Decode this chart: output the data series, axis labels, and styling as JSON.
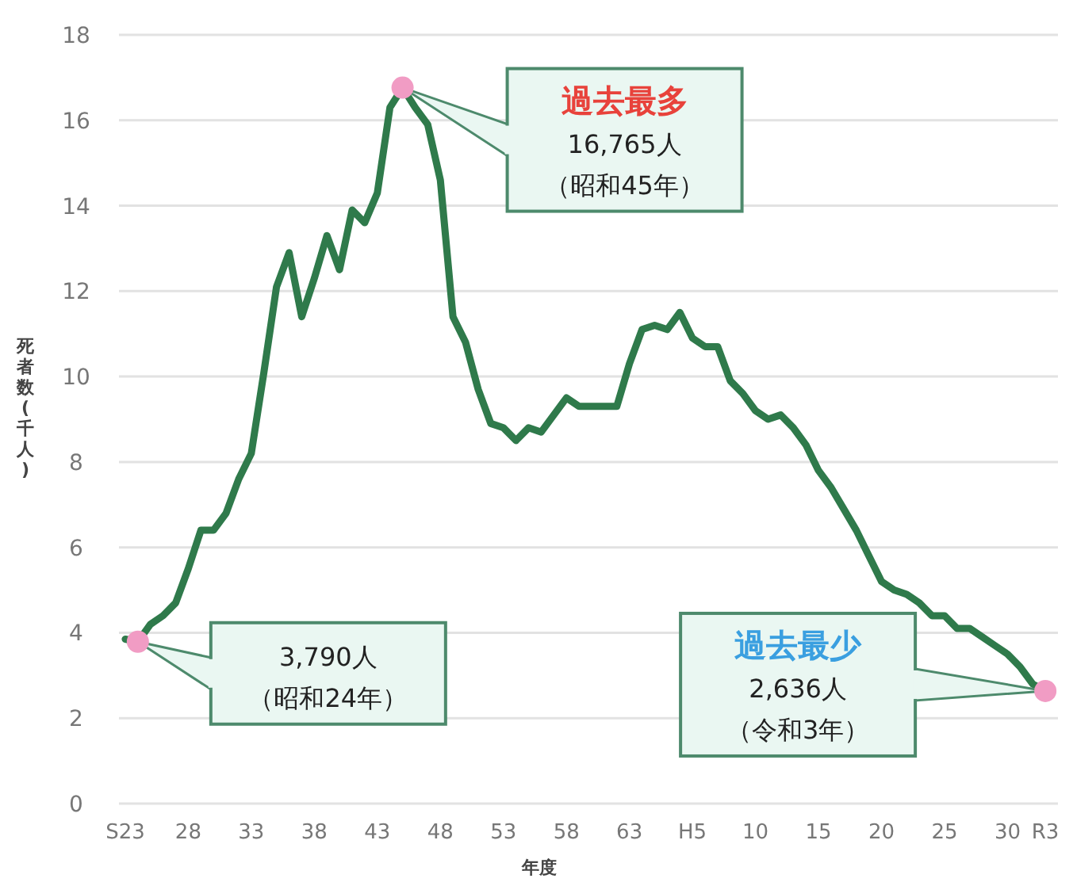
{
  "chart_data": {
    "type": "line",
    "xlabel": "年度",
    "ylabel": "死者数(千人)",
    "categories": [
      "S23",
      null,
      null,
      null,
      null,
      "28",
      null,
      null,
      null,
      null,
      "33",
      null,
      null,
      null,
      null,
      "38",
      null,
      null,
      null,
      null,
      "43",
      null,
      null,
      null,
      null,
      "48",
      null,
      null,
      null,
      null,
      "53",
      null,
      null,
      null,
      null,
      "58",
      null,
      null,
      null,
      null,
      "63",
      null,
      null,
      null,
      null,
      "H5",
      null,
      null,
      null,
      null,
      "10",
      null,
      null,
      null,
      null,
      "15",
      null,
      null,
      null,
      null,
      "20",
      null,
      null,
      null,
      null,
      "25",
      null,
      null,
      null,
      null,
      "30",
      null,
      null,
      "R3"
    ],
    "series": [
      {
        "color": "#2f7a4b",
        "values": [
          3.85,
          3.79,
          4.2,
          4.4,
          4.7,
          5.5,
          6.4,
          6.4,
          6.8,
          7.6,
          8.2,
          10.1,
          12.1,
          12.9,
          11.4,
          12.3,
          13.3,
          12.5,
          13.9,
          13.6,
          14.3,
          16.3,
          16.765,
          16.3,
          15.9,
          14.6,
          11.4,
          10.8,
          9.7,
          8.9,
          8.8,
          8.5,
          8.8,
          8.7,
          9.1,
          9.5,
          9.3,
          9.3,
          9.3,
          9.3,
          10.3,
          11.1,
          11.2,
          11.1,
          11.5,
          10.9,
          10.7,
          10.7,
          9.9,
          9.6,
          9.2,
          9.0,
          9.1,
          8.8,
          8.4,
          7.8,
          7.4,
          6.9,
          6.4,
          5.8,
          5.2,
          5.0,
          4.9,
          4.7,
          4.4,
          4.4,
          4.1,
          4.1,
          3.9,
          3.7,
          3.5,
          3.2,
          2.8,
          2.636
        ]
      },
      {
        "type": "scatter",
        "color": "#f19cc4",
        "marker": "circle",
        "values": [
          null,
          3.79,
          null,
          null,
          null,
          null,
          null,
          null,
          null,
          null,
          null,
          null,
          null,
          null,
          null,
          null,
          null,
          null,
          null,
          null,
          null,
          null,
          16.765,
          null,
          null,
          null,
          null,
          null,
          null,
          null,
          null,
          null,
          null,
          null,
          null,
          null,
          null,
          null,
          null,
          null,
          null,
          null,
          null,
          null,
          null,
          null,
          null,
          null,
          null,
          null,
          null,
          null,
          null,
          null,
          null,
          null,
          null,
          null,
          null,
          null,
          null,
          null,
          null,
          null,
          null,
          null,
          null,
          null,
          null,
          null,
          null,
          null,
          null,
          2.636
        ]
      }
    ],
    "ylim": [
      0,
      18
    ],
    "yticks": [
      0,
      2,
      4,
      6,
      8,
      10,
      12,
      14,
      16,
      18
    ],
    "grid": "y",
    "line_style": "solid",
    "annotations": [
      "3,790人",
      "（昭和24年）",
      "過去最多",
      "16,765人",
      "（昭和45年）",
      "過去最少",
      "2,636人",
      "（令和3年）"
    ]
  }
}
